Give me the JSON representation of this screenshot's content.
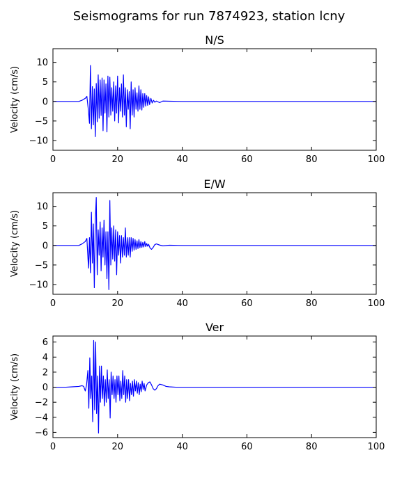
{
  "figure": {
    "title": "Seismograms for run 7874923, station lcny",
    "line_color": "#0000ff"
  },
  "chart_data": [
    {
      "type": "line",
      "title": "N/S",
      "xlabel": "",
      "ylabel": "Velocity (cm/s)",
      "xlim": [
        0,
        100
      ],
      "ylim": [
        -12.5,
        13.5
      ],
      "xticks": [
        0,
        20,
        40,
        60,
        80,
        100
      ],
      "yticks": [
        10,
        5,
        0,
        -5,
        -10
      ],
      "grid": false,
      "series": [
        {
          "x": [
            0,
            5,
            8,
            9,
            10,
            10.5,
            11,
            11.3,
            11.6,
            11.9,
            12.2,
            12.5,
            12.8,
            13.1,
            13.4,
            13.7,
            14.0,
            14.3,
            14.6,
            14.9,
            15.2,
            15.5,
            15.8,
            16.1,
            16.4,
            16.7,
            17.0,
            17.3,
            17.6,
            17.9,
            18.2,
            18.5,
            18.8,
            19.1,
            19.4,
            19.7,
            20.0,
            20.3,
            20.6,
            20.9,
            21.2,
            21.5,
            21.8,
            22.1,
            22.4,
            22.7,
            23.0,
            23.3,
            23.6,
            23.9,
            24.2,
            24.5,
            24.8,
            25.1,
            25.4,
            25.7,
            26.0,
            26.3,
            26.6,
            26.9,
            27.2,
            27.5,
            27.8,
            28.1,
            28.4,
            28.7,
            29.0,
            29.3,
            29.6,
            29.9,
            30.3,
            30.7,
            31.1,
            31.5,
            32,
            33,
            34,
            36,
            40,
            50,
            70,
            100
          ],
          "y": [
            0,
            0,
            0,
            0.3,
            0.8,
            1.3,
            -2.5,
            -5.6,
            9.2,
            -7.0,
            3.8,
            -6.0,
            3.2,
            -9.0,
            4.6,
            -5.2,
            6.8,
            -4.3,
            5.5,
            -3.6,
            6.0,
            -7.5,
            5.5,
            -3.0,
            4.5,
            -7.8,
            6.5,
            -4.0,
            6.2,
            -3.5,
            3.5,
            -2.5,
            5.0,
            -5.0,
            4.0,
            -3.0,
            6.5,
            -5.5,
            3.5,
            -2.5,
            4.5,
            -4.0,
            6.8,
            -3.5,
            3.5,
            -6.5,
            3.0,
            -2.0,
            2.5,
            -7.0,
            5.0,
            -3.5,
            3.0,
            -4.0,
            3.5,
            -2.0,
            2.2,
            -2.5,
            4.0,
            -2.0,
            3.0,
            -2.2,
            2.0,
            -1.5,
            2.0,
            -1.2,
            1.5,
            -1.0,
            1.2,
            -0.8,
            0.8,
            -0.4,
            0.3,
            -0.2,
            0.1,
            -0.3,
            0.1,
            0.05,
            0,
            0,
            0,
            0
          ]
        }
      ]
    },
    {
      "type": "line",
      "title": "E/W",
      "xlabel": "",
      "ylabel": "Velocity (cm/s)",
      "xlim": [
        0,
        100
      ],
      "ylim": [
        -12.5,
        13.5
      ],
      "xticks": [
        0,
        20,
        40,
        60,
        80,
        100
      ],
      "yticks": [
        10,
        5,
        0,
        -5,
        -10
      ],
      "grid": false,
      "series": [
        {
          "x": [
            0,
            5,
            8,
            9,
            10,
            10.5,
            11,
            11.3,
            11.6,
            11.9,
            12.2,
            12.5,
            12.8,
            13.1,
            13.4,
            13.7,
            14.0,
            14.3,
            14.6,
            14.9,
            15.2,
            15.5,
            15.8,
            16.1,
            16.4,
            16.7,
            17.0,
            17.3,
            17.6,
            17.9,
            18.2,
            18.5,
            18.8,
            19.1,
            19.4,
            19.7,
            20.0,
            20.3,
            20.6,
            20.9,
            21.2,
            21.5,
            21.8,
            22.1,
            22.4,
            22.7,
            23.0,
            23.3,
            23.6,
            23.9,
            24.2,
            24.5,
            24.8,
            25.1,
            25.4,
            25.7,
            26.0,
            26.3,
            26.6,
            26.9,
            27.2,
            27.5,
            27.8,
            28.1,
            28.4,
            28.7,
            29.0,
            29.3,
            29.6,
            30,
            30.5,
            31,
            31.5,
            32,
            33,
            34,
            36,
            40,
            50,
            70,
            100
          ],
          "y": [
            0,
            0,
            0,
            0.4,
            1.0,
            1.8,
            -5.8,
            2.0,
            -7.0,
            8.5,
            -4.5,
            5.5,
            -10.8,
            6.2,
            12.3,
            -7.5,
            4.0,
            -2.5,
            6.0,
            -6.5,
            4.5,
            -3.0,
            6.5,
            -5.0,
            3.5,
            -8.5,
            3.5,
            -11.3,
            11.5,
            -5.0,
            4.5,
            -3.5,
            5.0,
            -4.0,
            4.0,
            -7.5,
            3.5,
            -2.5,
            2.5,
            -4.5,
            2.5,
            -3.0,
            2.0,
            -2.5,
            4.5,
            -3.0,
            2.0,
            -2.5,
            2.0,
            -3.0,
            2.0,
            -1.5,
            1.8,
            -1.2,
            1.5,
            -1.0,
            1.2,
            -0.8,
            1.5,
            -0.6,
            1.0,
            -0.5,
            0.8,
            -0.4,
            1.0,
            -0.3,
            0.5,
            -0.2,
            0.3,
            -0.6,
            -1.0,
            -0.5,
            0.2,
            0.4,
            0.1,
            -0.1,
            0.05,
            0,
            0,
            0,
            0
          ]
        }
      ]
    },
    {
      "type": "line",
      "title": "Ver",
      "xlabel": "",
      "ylabel": "Velocity (cm/s)",
      "xlim": [
        0,
        100
      ],
      "ylim": [
        -6.7,
        6.8
      ],
      "xticks": [
        0,
        20,
        40,
        60,
        80,
        100
      ],
      "yticks": [
        6,
        4,
        2,
        0,
        -2,
        -4,
        -6
      ],
      "grid": false,
      "series": [
        {
          "x": [
            0,
            4,
            6,
            8,
            9,
            9.5,
            10,
            10.4,
            10.8,
            11.1,
            11.4,
            11.7,
            12.0,
            12.3,
            12.6,
            12.9,
            13.2,
            13.5,
            13.8,
            14.1,
            14.4,
            14.7,
            15.0,
            15.3,
            15.6,
            15.9,
            16.2,
            16.5,
            16.8,
            17.1,
            17.4,
            17.7,
            18.0,
            18.3,
            18.6,
            18.9,
            19.2,
            19.5,
            19.8,
            20.1,
            20.4,
            20.7,
            21.0,
            21.3,
            21.6,
            21.9,
            22.2,
            22.5,
            22.8,
            23.1,
            23.4,
            23.7,
            24.0,
            24.3,
            24.6,
            24.9,
            25.2,
            25.5,
            25.8,
            26.1,
            26.4,
            26.7,
            27.0,
            27.3,
            27.6,
            27.9,
            28.2,
            28.5,
            29,
            29.5,
            30,
            30.5,
            31,
            31.5,
            32,
            32.5,
            33,
            34,
            35,
            36,
            38,
            40,
            50,
            70,
            100
          ],
          "y": [
            0,
            0,
            0.05,
            0.1,
            0.2,
            0.1,
            -0.5,
            0.3,
            2.2,
            -2.8,
            3.9,
            -1.5,
            1.5,
            -4.6,
            6.2,
            -3.0,
            6.0,
            -3.5,
            1.5,
            -6.1,
            2.8,
            -2.0,
            2.8,
            -1.5,
            1.5,
            -2.5,
            1.0,
            -2.0,
            2.3,
            -1.5,
            1.0,
            -4.1,
            2.0,
            -1.0,
            1.5,
            -1.5,
            1.0,
            -2.0,
            1.5,
            -1.0,
            1.5,
            -1.8,
            0.8,
            -1.5,
            2.2,
            -1.0,
            1.5,
            -2.0,
            1.0,
            -1.5,
            1.0,
            -1.8,
            0.5,
            -1.0,
            0.8,
            -1.2,
            1.0,
            -0.5,
            0.8,
            -0.8,
            0.6,
            -1.0,
            0.4,
            -0.6,
            0.8,
            -0.3,
            0.5,
            -0.5,
            0.3,
            0.6,
            0.7,
            0.3,
            -0.2,
            -0.4,
            -0.2,
            0.2,
            0.4,
            0.3,
            0.1,
            0.05,
            0,
            0,
            0,
            0,
            0
          ]
        }
      ]
    }
  ]
}
